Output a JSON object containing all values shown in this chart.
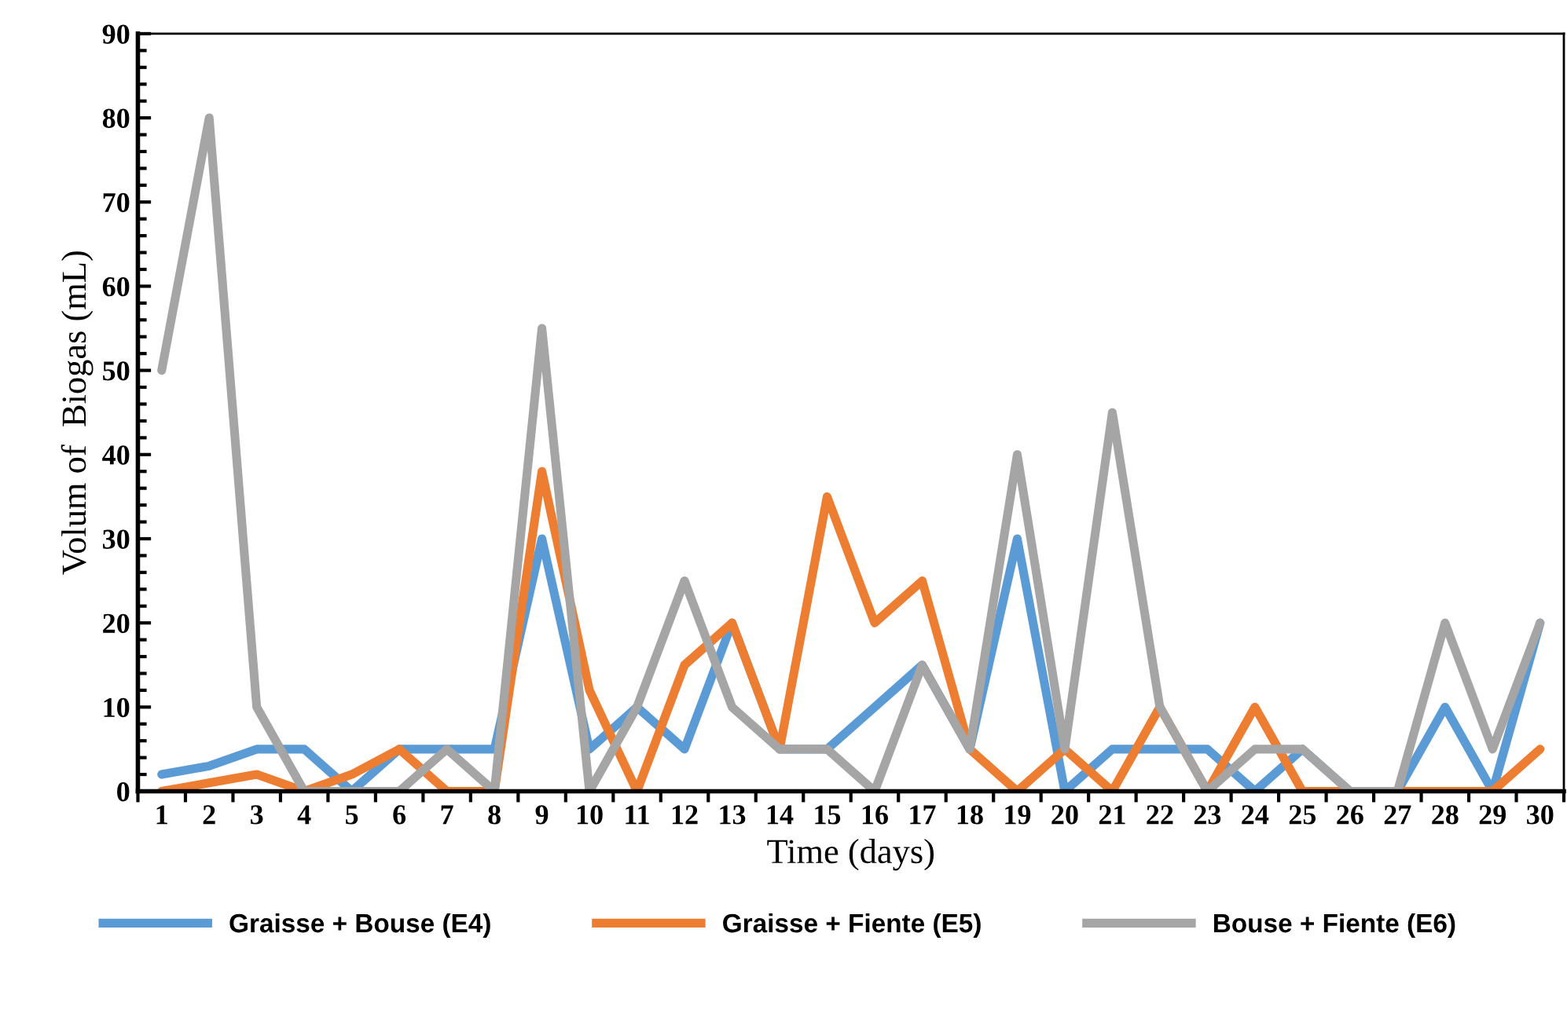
{
  "chart_data": {
    "type": "line",
    "xlabel": "Time (days)",
    "ylabel": "Volum of  Biogas (mL)",
    "categories": [
      "1",
      "2",
      "3",
      "4",
      "5",
      "6",
      "7",
      "8",
      "9",
      "10",
      "11",
      "12",
      "13",
      "14",
      "15",
      "16",
      "17",
      "18",
      "19",
      "20",
      "21",
      "22",
      "23",
      "24",
      "25",
      "26",
      "27",
      "28",
      "29",
      "30"
    ],
    "series": [
      {
        "name": "Graisse + Bouse (E4)",
        "color": "#5b9bd5",
        "values": [
          2,
          3,
          5,
          5,
          0,
          5,
          5,
          5,
          30,
          5,
          10,
          5,
          20,
          5,
          5,
          10,
          15,
          5,
          30,
          0,
          5,
          5,
          5,
          0,
          5,
          0,
          0,
          10,
          0,
          20
        ]
      },
      {
        "name": "Graisse + Fiente (E5)",
        "color": "#ed7d31",
        "values": [
          0,
          1,
          2,
          0,
          2,
          5,
          0,
          0,
          38,
          12,
          0,
          15,
          20,
          5,
          35,
          20,
          25,
          5,
          0,
          5,
          0,
          10,
          0,
          10,
          0,
          0,
          0,
          0,
          0,
          5
        ]
      },
      {
        "name": "Bouse + Fiente (E6)",
        "color": "#a5a5a5",
        "values": [
          50,
          80,
          10,
          0,
          0,
          0,
          5,
          0,
          55,
          0,
          10,
          25,
          10,
          5,
          5,
          0,
          15,
          5,
          40,
          5,
          45,
          10,
          0,
          5,
          5,
          0,
          0,
          20,
          5,
          20
        ]
      }
    ],
    "ylim": [
      0,
      90
    ],
    "yticks": [
      0,
      10,
      20,
      30,
      40,
      50,
      60,
      70,
      80,
      90
    ],
    "grid": false,
    "legend": "bottom",
    "marker": "none",
    "line_style": "solid"
  }
}
